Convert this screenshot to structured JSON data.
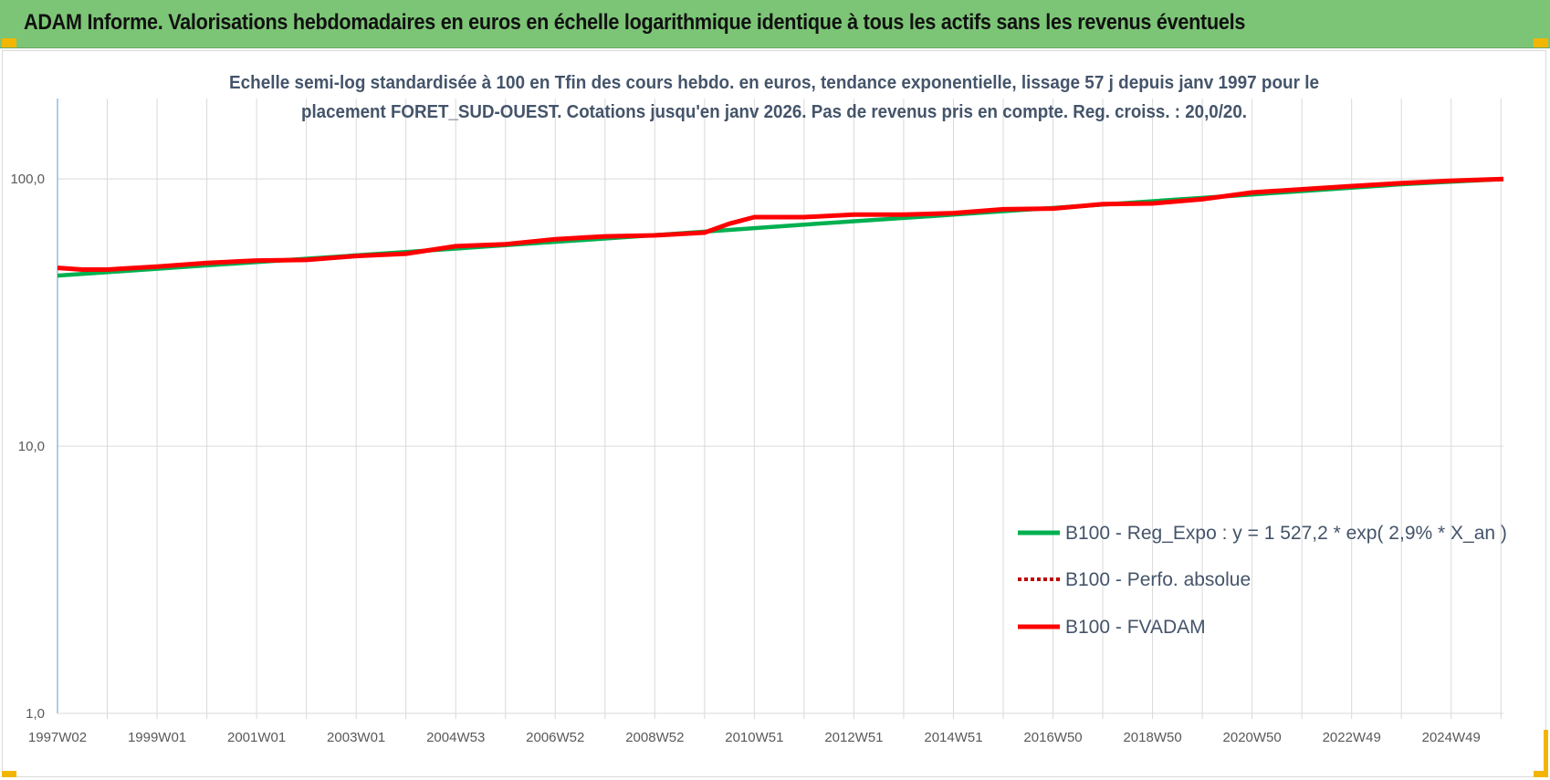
{
  "banner": {
    "title": "ADAM Informe. Valorisations hebdomadaires en euros en échelle logarithmique identique à tous les actifs sans les revenus éventuels"
  },
  "colors": {
    "banner_bg": "#7cc576",
    "corner_accent": "#f2b600",
    "reg_expo": "#00b050",
    "perfo_absolue": "#c00000",
    "fvadam": "#ff0000",
    "axis_line": "#5b9bd5",
    "grid": "#d9d9d9"
  },
  "chart_data": {
    "type": "line",
    "subtitle_lines": [
      "Echelle semi-log standardisée à 100 en Tfin des cours hebdo. en euros, tendance exponentielle, lissage 57 j depuis janv 1997 pour le",
      "placement FORET_SUD-OUEST. Cotations jusqu'en janv 2026. Pas de revenus pris en compte. Reg. croiss. : 20,0/20."
    ],
    "y_scale": "log",
    "ylim": [
      1,
      200
    ],
    "y_ticks": [
      {
        "value": 1,
        "label": "1,0"
      },
      {
        "value": 10,
        "label": "10,0"
      },
      {
        "value": 100,
        "label": "100,0"
      }
    ],
    "xlim": [
      1997.0,
      2026.05
    ],
    "x_ticks": [
      {
        "t": 1997.0,
        "label": "1997W02"
      },
      {
        "t": 1999.0,
        "label": "1999W01"
      },
      {
        "t": 2001.0,
        "label": "2001W01"
      },
      {
        "t": 2003.0,
        "label": "2003W01"
      },
      {
        "t": 2005.0,
        "label": "2004W53"
      },
      {
        "t": 2007.0,
        "label": "2006W52"
      },
      {
        "t": 2009.0,
        "label": "2008W52"
      },
      {
        "t": 2011.0,
        "label": "2010W51"
      },
      {
        "t": 2013.0,
        "label": "2012W51"
      },
      {
        "t": 2015.0,
        "label": "2014W51"
      },
      {
        "t": 2017.0,
        "label": "2016W50"
      },
      {
        "t": 2019.0,
        "label": "2018W50"
      },
      {
        "t": 2021.0,
        "label": "2020W50"
      },
      {
        "t": 2023.0,
        "label": "2022W49"
      },
      {
        "t": 2025.0,
        "label": "2024W49"
      }
    ],
    "grid": "vertical and horizontal",
    "legend_position": "bottom-right",
    "series": [
      {
        "name": "B100 - Reg_Expo : y = 1 527,2 * exp( 2,9% *  X_an )",
        "style": "solid",
        "x": [
          1997.0,
          2000.0,
          2003.0,
          2006.0,
          2009.0,
          2012.0,
          2015.0,
          2018.0,
          2021.0,
          2024.0,
          2026.05
        ],
        "y": [
          43.5,
          47.5,
          51.8,
          56.5,
          61.6,
          67.5,
          73.5,
          80.2,
          87.5,
          95.5,
          100.0
        ]
      },
      {
        "name": "B100 - Perfo. absolue",
        "style": "dotted",
        "x": [
          1997.0,
          1997.5,
          1998.0,
          1999.0,
          2000.0,
          2001.0,
          2002.0,
          2003.0,
          2004.0,
          2005.0,
          2006.0,
          2007.0,
          2008.0,
          2009.0,
          2010.0,
          2010.5,
          2011.0,
          2011.5,
          2012.0,
          2013.0,
          2014.0,
          2015.0,
          2016.0,
          2017.0,
          2018.0,
          2019.0,
          2020.0,
          2021.0,
          2022.0,
          2023.0,
          2024.0,
          2025.0,
          2026.05
        ],
        "y": [
          46.5,
          45.8,
          45.8,
          47.0,
          48.5,
          49.5,
          49.8,
          51.5,
          52.5,
          56.0,
          57.0,
          59.5,
          61.0,
          61.5,
          63.0,
          68.0,
          72.0,
          72.0,
          72.0,
          73.5,
          73.5,
          74.5,
          77.0,
          77.5,
          80.5,
          81.0,
          84.0,
          89.0,
          91.5,
          94.0,
          96.5,
          98.5,
          100.0
        ]
      },
      {
        "name": "B100 - FVADAM",
        "style": "solid",
        "x": [
          1997.0,
          1997.5,
          1998.0,
          1999.0,
          2000.0,
          2001.0,
          2002.0,
          2003.0,
          2004.0,
          2005.0,
          2006.0,
          2007.0,
          2008.0,
          2009.0,
          2010.0,
          2010.5,
          2011.0,
          2011.5,
          2012.0,
          2013.0,
          2014.0,
          2015.0,
          2016.0,
          2017.0,
          2018.0,
          2019.0,
          2020.0,
          2021.0,
          2022.0,
          2023.0,
          2024.0,
          2025.0,
          2026.05
        ],
        "y": [
          46.5,
          45.8,
          45.8,
          47.0,
          48.5,
          49.5,
          49.8,
          51.5,
          52.5,
          56.0,
          57.0,
          59.5,
          61.0,
          61.5,
          63.0,
          68.0,
          72.0,
          72.0,
          72.0,
          73.5,
          73.5,
          74.5,
          77.0,
          77.5,
          80.5,
          81.0,
          84.0,
          89.0,
          91.5,
          94.0,
          96.5,
          98.5,
          100.0
        ]
      }
    ]
  }
}
